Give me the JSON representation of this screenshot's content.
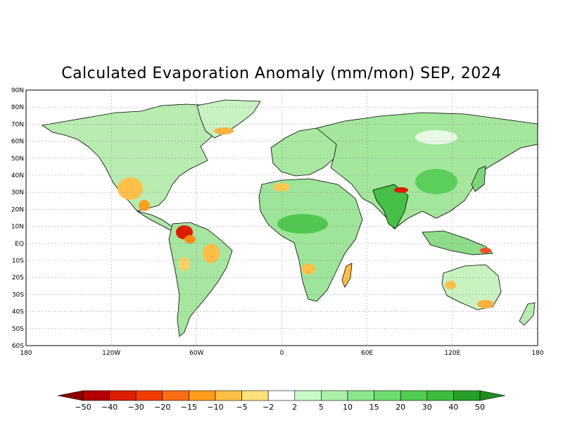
{
  "title": "Calculated Evaporation Anomaly (mm/mon) SEP, 2024",
  "map": {
    "lat_labels": [
      "90N",
      "80N",
      "70N",
      "60N",
      "50N",
      "40N",
      "30N",
      "20N",
      "10N",
      "EQ",
      "10S",
      "20S",
      "30S",
      "40S",
      "50S",
      "60S"
    ],
    "lon_labels": [
      "180",
      "120W",
      "60W",
      "0",
      "60E",
      "120E",
      "180"
    ],
    "grid": "dotted",
    "projection": "equirectangular"
  },
  "colorbar": {
    "labels": [
      "-50",
      "-40",
      "-30",
      "-20",
      "-15",
      "-10",
      "-5",
      "-2",
      "2",
      "5",
      "10",
      "15",
      "20",
      "30",
      "40",
      "50"
    ],
    "colors": [
      "#b40000",
      "#dc1e00",
      "#f03c00",
      "#fa6e14",
      "#ff9e1e",
      "#ffbe46",
      "#ffe07a",
      "#ffffff",
      "#c8fac8",
      "#aaf0a8",
      "#8ce68c",
      "#6edc6e",
      "#50cd50",
      "#3cbe3c",
      "#28a028"
    ],
    "left_arrow_color": "#8c0000",
    "right_arrow_color": "#1e8c1e"
  }
}
